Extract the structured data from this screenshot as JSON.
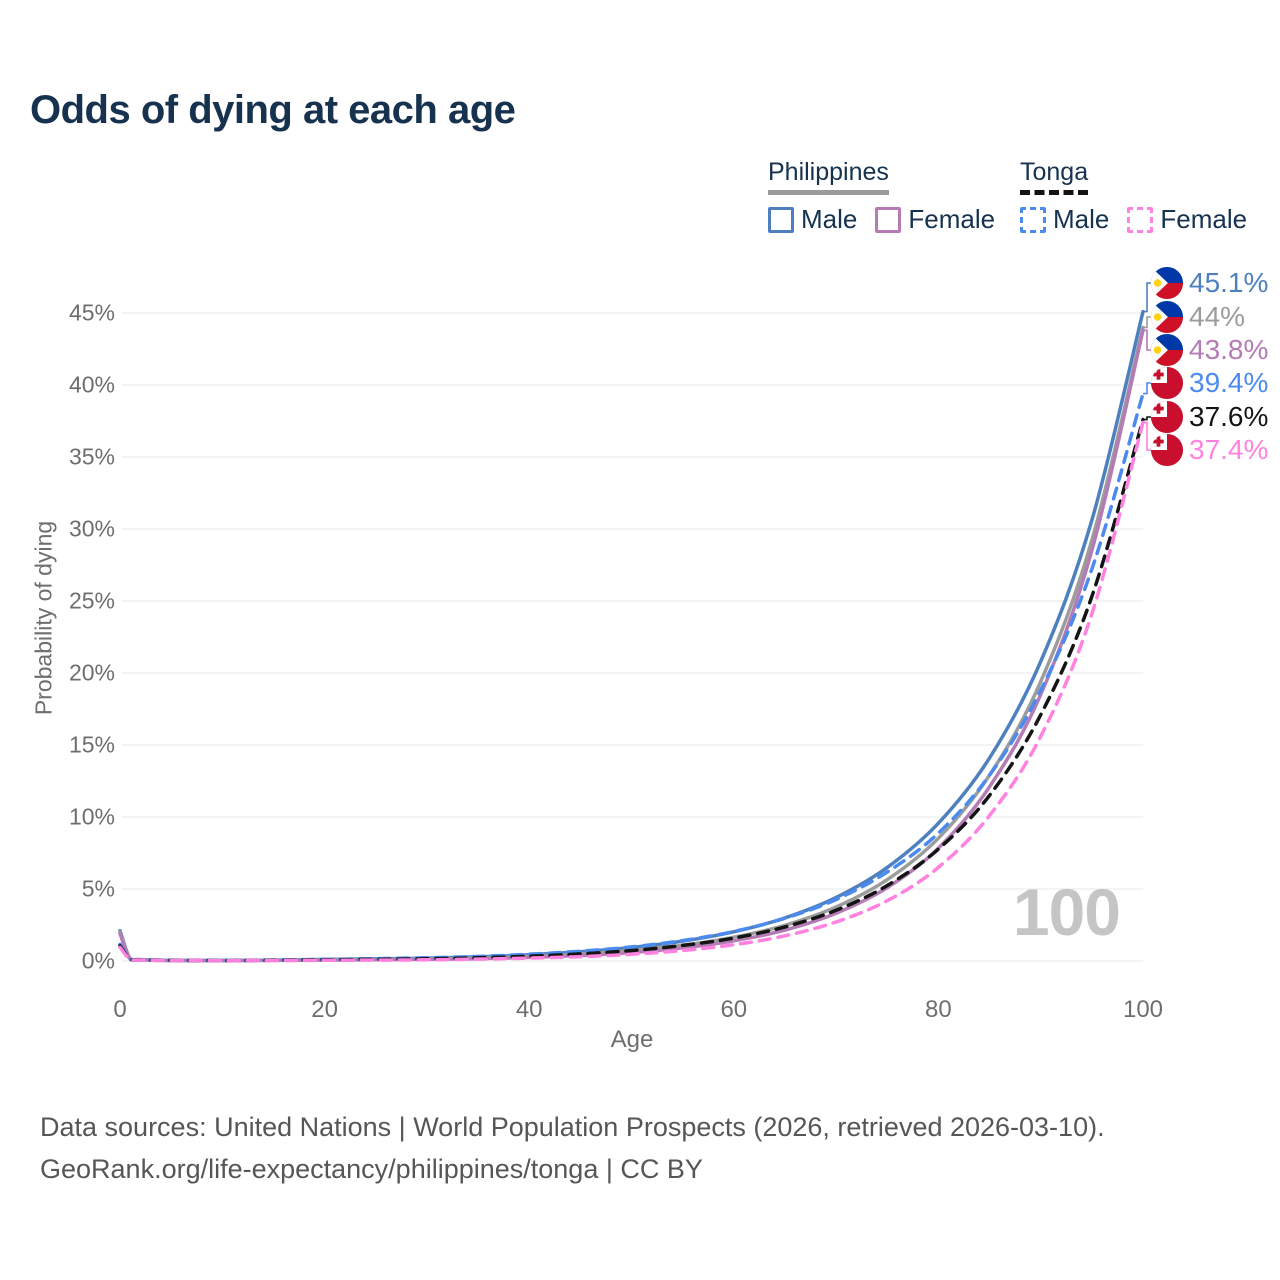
{
  "title": "Odds of dying at each age",
  "watermark": "100",
  "footer": {
    "line1": "Data sources: United Nations | World Population Prospects (2026, retrieved 2026-03-10).",
    "line2": "GeoRank.org/life-expectancy/philippines/tonga | CC BY"
  },
  "colors": {
    "ph_male": "#4e80c0",
    "ph_both": "#9c9c9c",
    "ph_female": "#b57bb5",
    "tonga_male": "#4b8bf0",
    "tonga_both": "#141414",
    "tonga_female": "#ff82e0",
    "grid": "#eaeaea",
    "text_dark": "#16324f",
    "text_axis": "#6e6e6e"
  },
  "legend": {
    "groups": [
      {
        "name": "Philippines",
        "underline_style": "solid",
        "underline_color": "#9a9a9a",
        "items": [
          {
            "label": "Male",
            "color": "#4e80c0",
            "dashed": false
          },
          {
            "label": "Female",
            "color": "#b57bb5",
            "dashed": false
          }
        ]
      },
      {
        "name": "Tonga",
        "underline_style": "dashed",
        "underline_color": "#141414",
        "items": [
          {
            "label": "Male",
            "color": "#4b8bf0",
            "dashed": true
          },
          {
            "label": "Female",
            "color": "#ff82e0",
            "dashed": true
          }
        ]
      }
    ]
  },
  "chart_data": {
    "type": "line",
    "title": "Odds of dying at each age",
    "xlabel": "Age",
    "ylabel": "Probability of dying",
    "xlim": [
      0,
      100
    ],
    "ylim_percent": [
      0,
      47
    ],
    "grid": "horizontal-only",
    "x_ticks": [
      0,
      20,
      40,
      60,
      80,
      100
    ],
    "y_ticks_percent": [
      0,
      5,
      10,
      15,
      20,
      25,
      30,
      35,
      40,
      45
    ],
    "x_ages": [
      0,
      1,
      2,
      5,
      10,
      15,
      20,
      25,
      30,
      35,
      40,
      45,
      50,
      55,
      60,
      65,
      70,
      75,
      80,
      85,
      90,
      95,
      100
    ],
    "series": [
      {
        "name": "Philippines – Male",
        "country": "Philippines",
        "sex": "Male",
        "color": "#4e80c0",
        "dashed": false,
        "flag": "philippines",
        "end_label": "45.1%",
        "values_percent": [
          2.1,
          0.14,
          0.1,
          0.05,
          0.04,
          0.06,
          0.11,
          0.15,
          0.2,
          0.29,
          0.43,
          0.64,
          0.94,
          1.38,
          2.03,
          2.99,
          4.41,
          6.5,
          9.57,
          14.1,
          20.8,
          30.6,
          45.1
        ]
      },
      {
        "name": "Philippines – Both sexes",
        "country": "Philippines",
        "sex": "Both",
        "color": "#9c9c9c",
        "dashed": false,
        "flag": "philippines",
        "end_label": "44%",
        "values_percent": [
          2.0,
          0.13,
          0.09,
          0.04,
          0.03,
          0.05,
          0.08,
          0.11,
          0.15,
          0.21,
          0.32,
          0.48,
          0.73,
          1.1,
          1.65,
          2.48,
          3.75,
          5.65,
          8.53,
          12.9,
          19.4,
          29.2,
          44.0
        ]
      },
      {
        "name": "Philippines – Female",
        "country": "Philippines",
        "sex": "Female",
        "color": "#b57bb5",
        "dashed": false,
        "flag": "philippines",
        "end_label": "43.8%",
        "values_percent": [
          1.9,
          0.12,
          0.08,
          0.03,
          0.03,
          0.04,
          0.06,
          0.08,
          0.11,
          0.16,
          0.25,
          0.39,
          0.59,
          0.91,
          1.4,
          2.15,
          3.32,
          5.1,
          7.84,
          12.1,
          18.5,
          28.5,
          43.8
        ]
      },
      {
        "name": "Tonga – Male",
        "country": "Tonga",
        "sex": "Male",
        "color": "#4b8bf0",
        "dashed": true,
        "flag": "tonga",
        "end_label": "39.4%",
        "values_percent": [
          1.15,
          0.12,
          0.08,
          0.05,
          0.04,
          0.06,
          0.11,
          0.16,
          0.22,
          0.32,
          0.47,
          0.68,
          0.98,
          1.42,
          2.05,
          2.97,
          4.27,
          6.18,
          8.88,
          12.9,
          18.8,
          27.2,
          39.4
        ]
      },
      {
        "name": "Tonga – Both sexes",
        "country": "Tonga",
        "sex": "Both",
        "color": "#141414",
        "dashed": true,
        "flag": "tonga",
        "end_label": "37.6%",
        "values_percent": [
          1.05,
          0.11,
          0.07,
          0.04,
          0.03,
          0.05,
          0.08,
          0.11,
          0.15,
          0.22,
          0.33,
          0.49,
          0.72,
          1.08,
          1.59,
          2.37,
          3.52,
          5.24,
          7.77,
          11.5,
          17.1,
          25.3,
          37.6
        ]
      },
      {
        "name": "Tonga – Female",
        "country": "Tonga",
        "sex": "Female",
        "color": "#ff82e0",
        "dashed": true,
        "flag": "tonga",
        "end_label": "37.4%",
        "values_percent": [
          0.95,
          0.1,
          0.06,
          0.03,
          0.02,
          0.03,
          0.05,
          0.06,
          0.08,
          0.13,
          0.2,
          0.3,
          0.47,
          0.73,
          1.13,
          1.75,
          2.71,
          4.19,
          6.5,
          10.1,
          15.6,
          24.1,
          37.4
        ]
      }
    ]
  }
}
